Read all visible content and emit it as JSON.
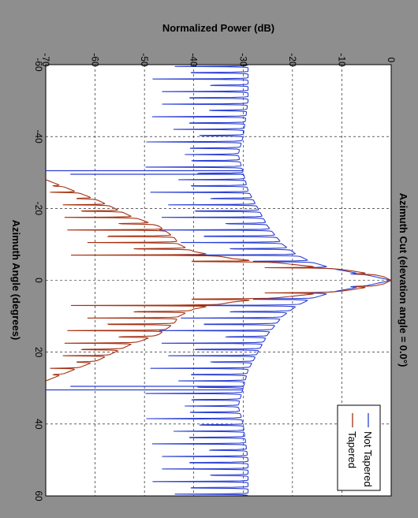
{
  "figure": {
    "background": "#8e8e8e",
    "plot_background": "#ffffff"
  },
  "chart_data": {
    "type": "line",
    "title": "Azimuth Cut (elevation angle = 0.0°)",
    "xlabel": "Azimuth Angle (degrees)",
    "ylabel": "Normalized Power (dB)",
    "xlim": [
      -60,
      60
    ],
    "ylim": [
      -70,
      0
    ],
    "xticks": [
      "-60",
      "-40",
      "-20",
      "0",
      "20",
      "40",
      "60"
    ],
    "yticks": [
      "0",
      "-10",
      "-20",
      "-30",
      "-40",
      "-50",
      "-60",
      "-70"
    ],
    "grid": true,
    "orientation": "rotated 90° clockwise",
    "legend": {
      "placement": "bottom-right",
      "entries": [
        "Not Tapered",
        "Tapered"
      ]
    },
    "series": [
      {
        "name": "Not Tapered",
        "color": "#2b3fd4",
        "envelope": {
          "x": [
            -60,
            -50,
            -40,
            -35,
            -30,
            -25,
            -20,
            -15,
            -10,
            -7,
            -5,
            -3,
            -1.5,
            0,
            1.5,
            3,
            5,
            7,
            10,
            15,
            20,
            25,
            30,
            35,
            40,
            50,
            60
          ],
          "y": [
            -29,
            -29,
            -30,
            -31,
            -30,
            -29,
            -27,
            -25,
            -22,
            -19,
            -16,
            -11,
            -5,
            0,
            -5,
            -11,
            -16,
            -19,
            -22,
            -25,
            -27,
            -29,
            -30,
            -31,
            -30,
            -29,
            -29
          ]
        },
        "null_floor": -52,
        "spikes": [
          {
            "x": -30.5,
            "y": -70
          },
          {
            "x": -29.5,
            "y": -65
          },
          {
            "x": 29.5,
            "y": -65
          },
          {
            "x": 30.5,
            "y": -70
          }
        ]
      },
      {
        "name": "Tapered",
        "color": "#a53010",
        "envelope": {
          "x": [
            -28,
            -22,
            -18,
            -15,
            -12,
            -10,
            -8,
            -6,
            -5,
            -4,
            -3,
            -2,
            -1,
            0,
            1,
            2,
            3,
            4,
            5,
            6,
            8,
            10,
            12,
            15,
            18,
            22,
            28
          ],
          "y": [
            -70,
            -59,
            -53,
            -47,
            -44,
            -43,
            -40,
            -32,
            -24,
            -17,
            -10,
            -5,
            -1.5,
            0,
            -1.5,
            -5,
            -10,
            -17,
            -24,
            -32,
            -40,
            -43,
            -44,
            -47,
            -53,
            -59,
            -70
          ]
        },
        "null_floor": -70
      }
    ]
  }
}
